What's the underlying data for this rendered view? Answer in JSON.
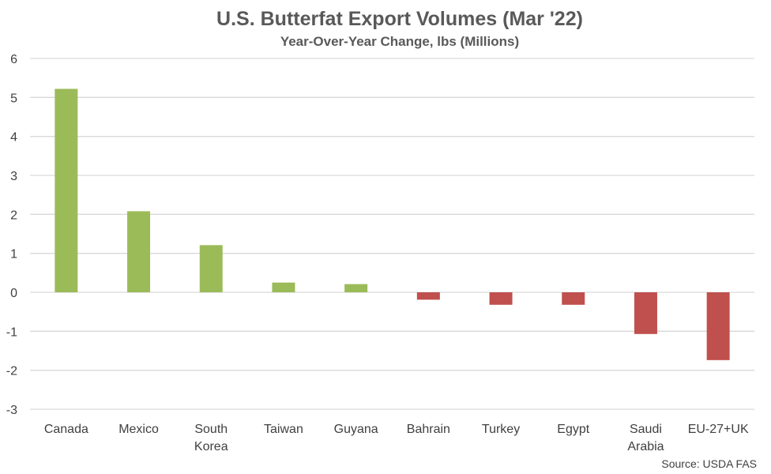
{
  "chart_data": {
    "type": "bar",
    "title": "U.S. Butterfat Export Volumes (Mar '22)",
    "subtitle": "Year-Over-Year Change, lbs (Millions)",
    "categories": [
      "Canada",
      "Mexico",
      "South Korea",
      "Taiwan",
      "Guyana",
      "Bahrain",
      "Turkey",
      "Egypt",
      "Saudi Arabia",
      "EU-27+UK"
    ],
    "category_lines": [
      [
        "Canada"
      ],
      [
        "Mexico"
      ],
      [
        "South",
        "Korea"
      ],
      [
        "Taiwan"
      ],
      [
        "Guyana"
      ],
      [
        "Bahrain"
      ],
      [
        "Turkey"
      ],
      [
        "Egypt"
      ],
      [
        "Saudi",
        "Arabia"
      ],
      [
        "EU-27+UK"
      ]
    ],
    "values": [
      5.22,
      2.08,
      1.21,
      0.25,
      0.21,
      -0.19,
      -0.32,
      -0.32,
      -1.07,
      -1.74
    ],
    "ylim": [
      -3,
      6
    ],
    "yticks": [
      -3,
      -2,
      -1,
      0,
      1,
      2,
      3,
      4,
      5,
      6
    ],
    "xlabel": "",
    "ylabel": "",
    "grid": true,
    "legend": "none",
    "colors": {
      "positive": "#9bbb59",
      "negative": "#c0504d",
      "grid": "#d9d9d9",
      "text": "#404040",
      "title": "#595959"
    },
    "source": "Source: USDA FAS"
  }
}
